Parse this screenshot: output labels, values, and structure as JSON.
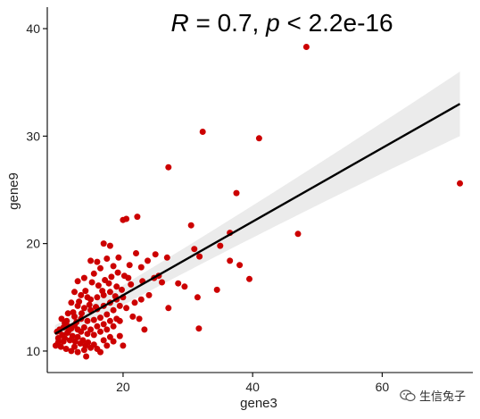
{
  "chart_data": {
    "type": "scatter",
    "annotation": {
      "r_symbol": "R",
      "r_text": " = 0.7, ",
      "p_symbol": "p",
      "p_text": " < 2.2e-16"
    },
    "xlabel": "gene3",
    "ylabel": "gene9",
    "xlim": [
      8.3,
      74
    ],
    "ylim": [
      8,
      42
    ],
    "x_ticks": [
      20,
      40,
      60
    ],
    "y_ticks": [
      10,
      20,
      30,
      40
    ],
    "grid": false,
    "colors": {
      "points": "#cc0000",
      "line": "#000000",
      "ribbon": "#ebebeb"
    },
    "regression": {
      "x": [
        9.5,
        72
      ],
      "y": [
        11.6,
        33
      ],
      "ci_upper": [
        12.4,
        36
      ],
      "ci_lower": [
        10.8,
        30
      ]
    },
    "points": [
      [
        48.3,
        38.3
      ],
      [
        32.3,
        30.4
      ],
      [
        41.0,
        29.8
      ],
      [
        72.0,
        25.6
      ],
      [
        27.0,
        27.1
      ],
      [
        37.5,
        24.7
      ],
      [
        20.0,
        22.2
      ],
      [
        20.5,
        22.3
      ],
      [
        22.2,
        22.5
      ],
      [
        30.5,
        21.7
      ],
      [
        47.0,
        20.9
      ],
      [
        36.5,
        21.0
      ],
      [
        17.0,
        20.0
      ],
      [
        18.0,
        19.8
      ],
      [
        35.0,
        19.8
      ],
      [
        31.0,
        19.5
      ],
      [
        22.0,
        19.1
      ],
      [
        25.0,
        19.0
      ],
      [
        31.8,
        18.8
      ],
      [
        36.5,
        18.4
      ],
      [
        15.0,
        18.4
      ],
      [
        16.0,
        18.3
      ],
      [
        17.5,
        18.6
      ],
      [
        19.3,
        18.7
      ],
      [
        21.0,
        18.0
      ],
      [
        38.0,
        18.0
      ],
      [
        16.5,
        17.7
      ],
      [
        18.5,
        17.9
      ],
      [
        25.5,
        17.0
      ],
      [
        39.5,
        16.7
      ],
      [
        23.0,
        16.5
      ],
      [
        26.0,
        16.4
      ],
      [
        29.5,
        16.0
      ],
      [
        34.5,
        15.7
      ],
      [
        31.5,
        15.0
      ],
      [
        24.0,
        15.2
      ],
      [
        27.0,
        14.0
      ],
      [
        20.5,
        14.0
      ],
      [
        21.5,
        13.2
      ],
      [
        22.5,
        13.0
      ],
      [
        19.5,
        12.8
      ],
      [
        31.7,
        12.1
      ],
      [
        23.3,
        12.0
      ],
      [
        20.0,
        10.5
      ],
      [
        13.0,
        16.5
      ],
      [
        14.0,
        16.8
      ],
      [
        15.5,
        17.2
      ],
      [
        12.5,
        15.5
      ],
      [
        13.5,
        15.2
      ],
      [
        14.5,
        15.0
      ],
      [
        15.0,
        14.8
      ],
      [
        16.0,
        15.0
      ],
      [
        17.0,
        15.2
      ],
      [
        18.0,
        15.5
      ],
      [
        19.0,
        16.0
      ],
      [
        12.0,
        14.5
      ],
      [
        13.0,
        14.2
      ],
      [
        14.0,
        14.0
      ],
      [
        15.0,
        13.8
      ],
      [
        16.0,
        13.9
      ],
      [
        17.0,
        14.2
      ],
      [
        18.0,
        14.5
      ],
      [
        19.0,
        14.8
      ],
      [
        20.0,
        15.0
      ],
      [
        11.5,
        13.5
      ],
      [
        12.5,
        13.2
      ],
      [
        13.5,
        13.0
      ],
      [
        14.5,
        12.8
      ],
      [
        15.5,
        12.9
      ],
      [
        16.5,
        13.1
      ],
      [
        17.5,
        13.4
      ],
      [
        18.5,
        13.8
      ],
      [
        19.5,
        14.2
      ],
      [
        10.5,
        13.0
      ],
      [
        11.0,
        12.6
      ],
      [
        11.5,
        12.3
      ],
      [
        12.0,
        12.1
      ],
      [
        12.5,
        12.4
      ],
      [
        13.0,
        12.0
      ],
      [
        13.5,
        11.8
      ],
      [
        14.0,
        12.2
      ],
      [
        14.5,
        11.6
      ],
      [
        15.0,
        12.0
      ],
      [
        15.5,
        11.5
      ],
      [
        16.0,
        12.3
      ],
      [
        16.5,
        11.8
      ],
      [
        17.0,
        12.5
      ],
      [
        17.5,
        12.0
      ],
      [
        18.0,
        12.8
      ],
      [
        18.5,
        12.3
      ],
      [
        19.0,
        13.0
      ],
      [
        9.8,
        11.8
      ],
      [
        10.2,
        12.0
      ],
      [
        10.6,
        11.5
      ],
      [
        11.0,
        11.2
      ],
      [
        11.4,
        11.7
      ],
      [
        11.8,
        11.0
      ],
      [
        12.2,
        11.4
      ],
      [
        12.6,
        10.9
      ],
      [
        13.0,
        11.3
      ],
      [
        13.4,
        10.7
      ],
      [
        13.8,
        11.0
      ],
      [
        14.2,
        10.5
      ],
      [
        14.6,
        10.8
      ],
      [
        15.0,
        10.3
      ],
      [
        15.5,
        10.6
      ],
      [
        16.0,
        10.2
      ],
      [
        17.0,
        11.0
      ],
      [
        18.0,
        11.3
      ],
      [
        9.6,
        10.5
      ],
      [
        10.0,
        10.8
      ],
      [
        10.4,
        10.4
      ],
      [
        10.8,
        10.9
      ],
      [
        11.2,
        10.2
      ],
      [
        12.0,
        10.0
      ],
      [
        13.0,
        9.9
      ],
      [
        14.0,
        10.1
      ],
      [
        14.3,
        9.5
      ],
      [
        12.5,
        10.4
      ],
      [
        16.5,
        9.9
      ],
      [
        17.5,
        10.5
      ],
      [
        18.5,
        10.9
      ],
      [
        19.5,
        11.4
      ],
      [
        11.3,
        12.8
      ],
      [
        12.3,
        13.6
      ],
      [
        13.2,
        14.6
      ],
      [
        14.2,
        15.6
      ],
      [
        15.2,
        16.4
      ],
      [
        16.2,
        16.1
      ],
      [
        17.2,
        16.6
      ],
      [
        18.2,
        16.9
      ],
      [
        19.2,
        17.3
      ],
      [
        20.2,
        17.0
      ],
      [
        21.2,
        16.2
      ],
      [
        10.0,
        11.2
      ],
      [
        10.8,
        12.2
      ],
      [
        11.6,
        11.9
      ],
      [
        12.8,
        12.7
      ],
      [
        13.6,
        13.5
      ],
      [
        14.8,
        14.3
      ],
      [
        15.8,
        14.1
      ],
      [
        16.8,
        15.6
      ],
      [
        17.8,
        16.3
      ],
      [
        18.8,
        15.1
      ],
      [
        19.8,
        15.7
      ],
      [
        20.8,
        16.8
      ],
      [
        22.8,
        17.8
      ],
      [
        23.8,
        18.4
      ],
      [
        26.8,
        18.7
      ],
      [
        28.5,
        16.3
      ],
      [
        21.8,
        14.5
      ],
      [
        22.8,
        14.8
      ],
      [
        24.8,
        16.8
      ]
    ]
  },
  "watermark": {
    "icon": "wechat-icon",
    "text": "生信兔子"
  }
}
